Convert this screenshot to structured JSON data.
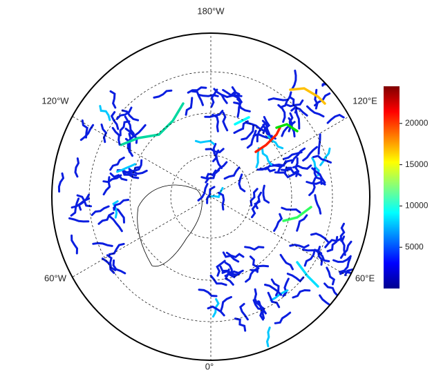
{
  "map": {
    "labels": {
      "top": "180°W",
      "upper_left": "120°W",
      "upper_right": "120°E",
      "lower_left": "60°W",
      "lower_right": "60°E",
      "bottom": "0°"
    },
    "colorbar": {
      "lim": [
        0,
        24500
      ],
      "ticks": [
        5000,
        10000,
        15000,
        20000
      ],
      "colormap": "jet"
    }
  }
}
